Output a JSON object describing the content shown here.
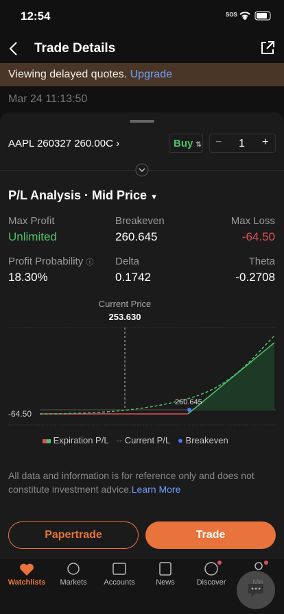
{
  "status_bar": {
    "time": "12:54",
    "sos": "SOS"
  },
  "header": {
    "title": "Trade Details"
  },
  "banner": {
    "text": "Viewing delayed quotes.",
    "link": "Upgrade"
  },
  "timestamp": "Mar 24 11:13:50",
  "order": {
    "contract": "AAPL 260327 260.00C",
    "side": "Buy",
    "quantity": "1"
  },
  "analysis": {
    "title": "P/L Analysis · Mid Price",
    "stats": [
      {
        "label": "Max Profit",
        "value": "Unlimited"
      },
      {
        "label": "Breakeven",
        "value": "260.645"
      },
      {
        "label": "Max Loss",
        "value": "-64.50"
      },
      {
        "label": "Profit Probability",
        "value": "18.30%"
      },
      {
        "label": "Delta",
        "value": "0.1742"
      },
      {
        "label": "Theta",
        "value": "-0.2708"
      }
    ]
  },
  "chart": {
    "current_price_label": "Current Price",
    "current_price": "253.630",
    "min_label": "-64.50",
    "breakeven_label": "260.645",
    "legend": [
      "Expiration P/L",
      "Current P/L",
      "Breakeven"
    ]
  },
  "disclaimer": {
    "text": "All data and information is for reference only and does not constitute investment advice.",
    "link": "Learn More"
  },
  "buttons": [
    "Papertrade",
    "Trade"
  ],
  "tabs": [
    "Watchlists",
    "Markets",
    "Accounts",
    "News",
    "Discover",
    "Me"
  ]
}
